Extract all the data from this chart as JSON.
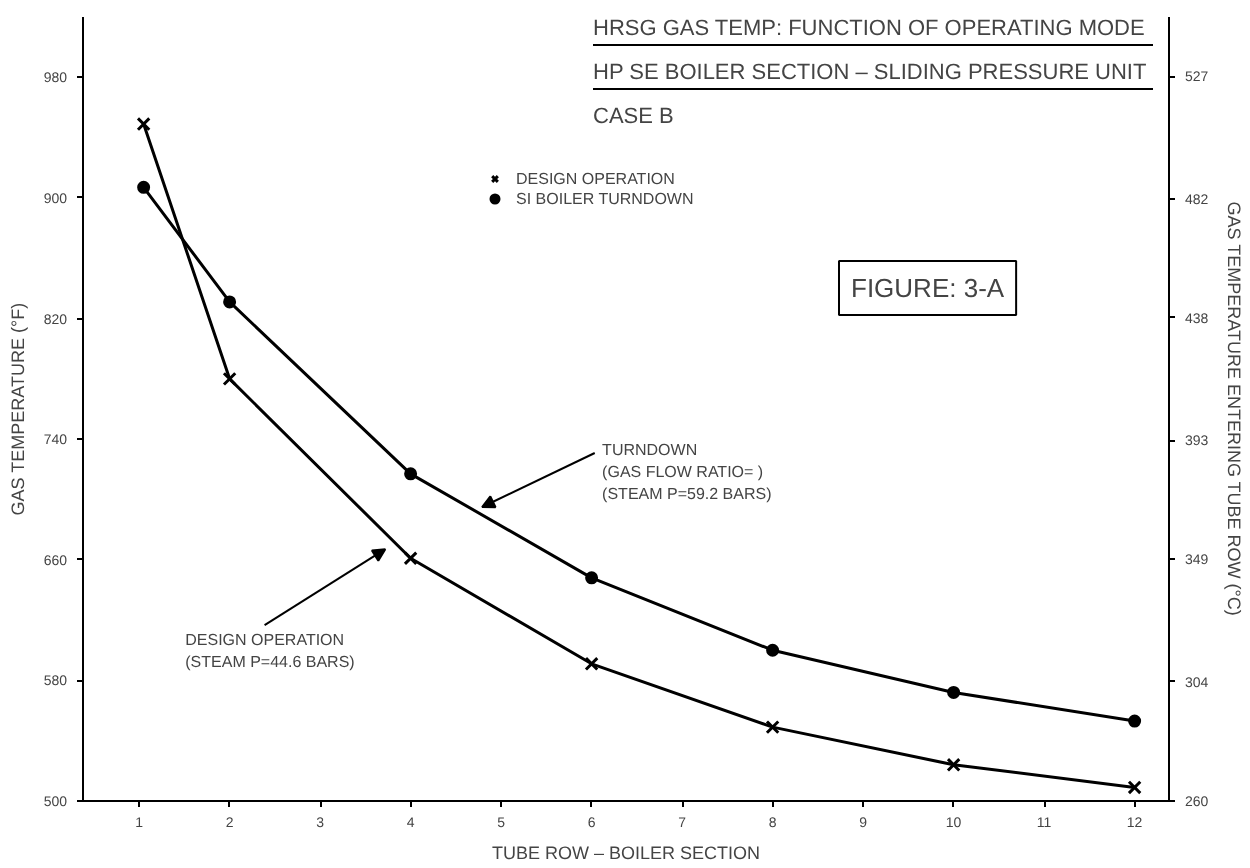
{
  "chart_data": {
    "type": "line",
    "title": "HRSG GAS TEMP: FUNCTION OF OPERATING MODE",
    "subtitle": "HP SE BOILER SECTION – SLIDING PRESSURE UNIT",
    "xlabel": "TUBE ROW – BOILER SECTION",
    "ylabel": "GAS TEMPERATURE (°F)",
    "y2label": "GAS TEMPERATURE ENTERING TUBE ROW (°C)",
    "series": [
      {
        "name": "DESIGN OPERATION",
        "color": "#000000",
        "marker": "cross",
        "x": [
          1.05,
          2,
          4,
          6,
          8,
          10,
          12
        ],
        "values": [
          949,
          780,
          661,
          591,
          549,
          524,
          509
        ]
      },
      {
        "name": "SI BOILER TURNDOWN",
        "color": "#000000",
        "marker": "circle",
        "x": [
          1.05,
          2,
          4,
          6,
          8,
          10,
          12
        ],
        "values": [
          907,
          831,
          717,
          648,
          600,
          572,
          553
        ]
      }
    ],
    "xlim": [
      0.38,
      12.38
    ],
    "xticks": [
      1,
      2,
      3,
      4,
      5,
      6,
      7,
      8,
      9,
      10,
      11,
      12
    ],
    "ylim": [
      500,
      1020
    ],
    "yticks": [
      500,
      580,
      660,
      740,
      820,
      900,
      980
    ],
    "y2lim": [
      260,
      548.9
    ],
    "y2ticks": [
      260,
      304,
      349,
      393,
      438,
      482,
      527
    ],
    "annotations": [
      "CASE B",
      "FIGURE: 3-A",
      {
        "text": "TURNDOWN\n(GAS FLOW RATIO=        )\n(STEAM P=59.2 BARS)",
        "x": 4.79,
        "y": 695
      },
      {
        "text": "DESIGN OPERATION\n(STEAM P=44.6 BARS)",
        "x": 3.72,
        "y": 667
      }
    ],
    "legend": "top",
    "grid": false,
    "line_style": "solid"
  }
}
